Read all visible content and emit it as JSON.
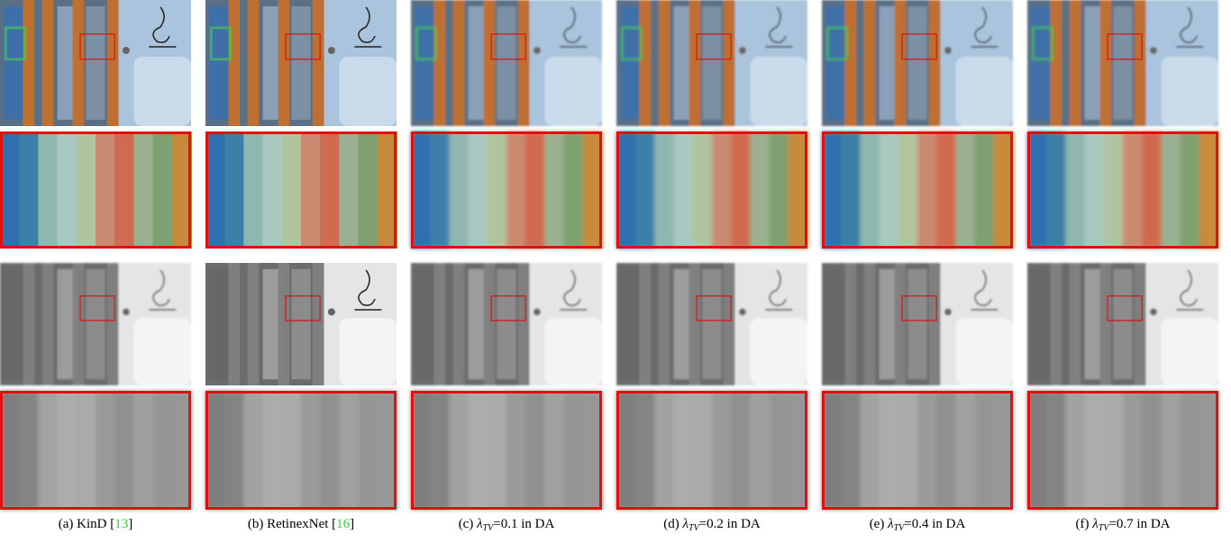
{
  "captions": [
    [
      {
        "text": "(a) KinD ["
      },
      {
        "text": "13",
        "style": "ref"
      },
      {
        "text": "]"
      }
    ],
    [
      {
        "text": "(b) RetinexNet ["
      },
      {
        "text": "16",
        "style": "ref"
      },
      {
        "text": "]"
      }
    ],
    [
      {
        "text": "(c) "
      },
      {
        "text": "λ",
        "style": "math"
      },
      {
        "text": "TV",
        "style": "sub"
      },
      {
        "text": "=0.1 in DA"
      }
    ],
    [
      {
        "text": "(d) "
      },
      {
        "text": "λ",
        "style": "math"
      },
      {
        "text": "TV",
        "style": "sub"
      },
      {
        "text": "=0.2 in DA"
      }
    ],
    [
      {
        "text": "(e) "
      },
      {
        "text": "λ",
        "style": "math"
      },
      {
        "text": "TV",
        "style": "sub"
      },
      {
        "text": "=0.4 in DA"
      }
    ],
    [
      {
        "text": "(f) "
      },
      {
        "text": "λ",
        "style": "math"
      },
      {
        "text": "TV",
        "style": "sub"
      },
      {
        "text": "=0.7 in DA"
      }
    ]
  ]
}
